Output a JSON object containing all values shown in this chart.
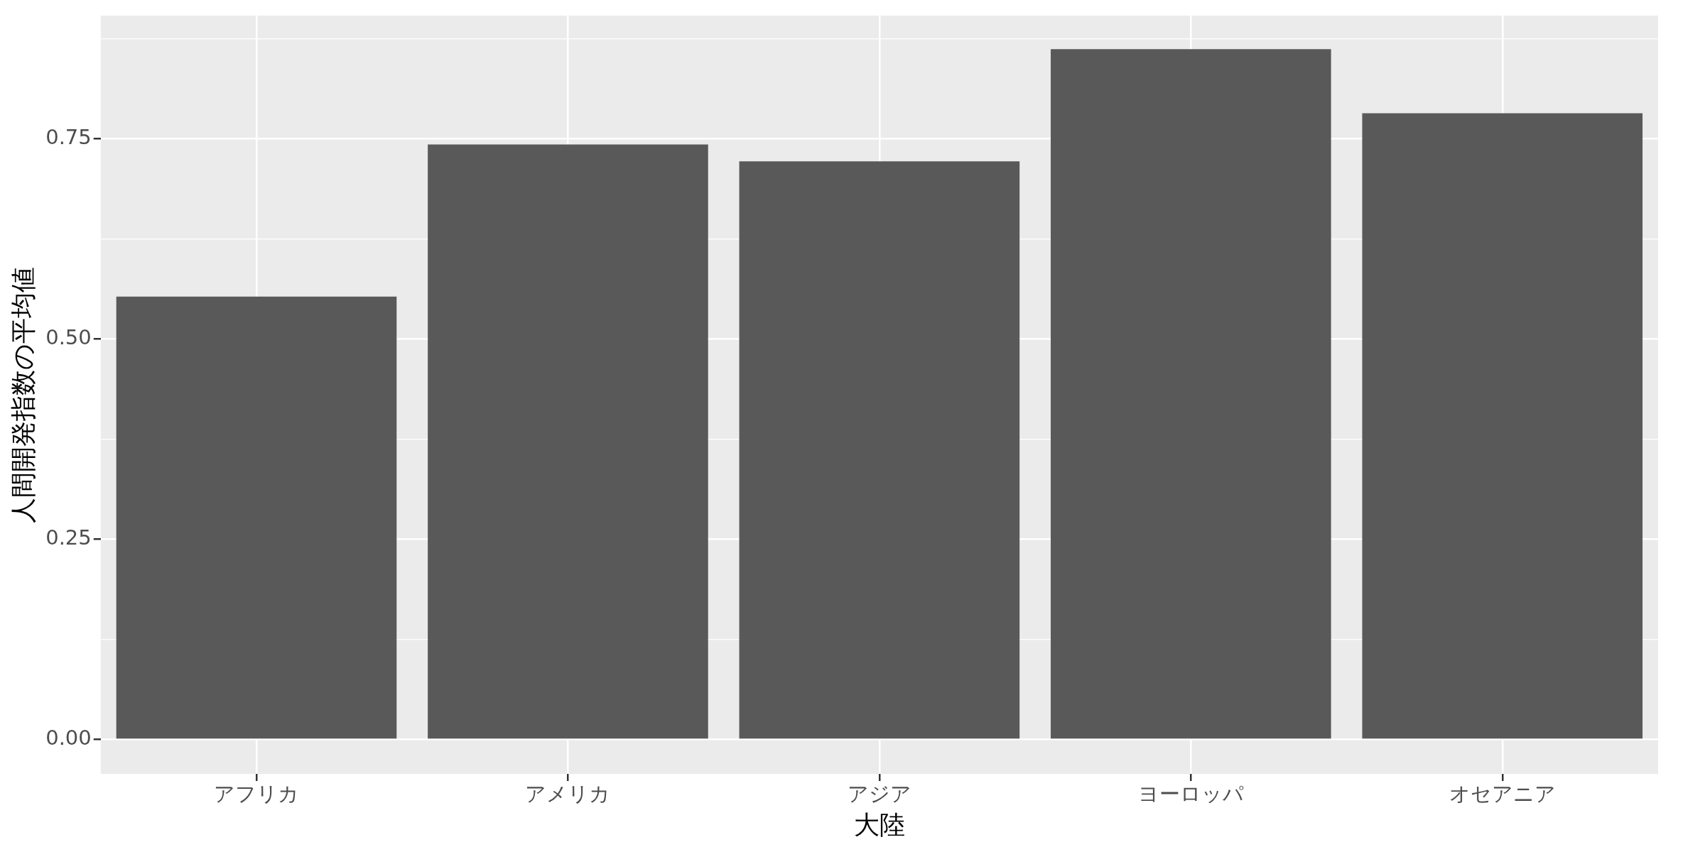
{
  "chart_data": {
    "type": "bar",
    "xlabel": "大陸",
    "ylabel": "人間開発指数の平均値",
    "categories": [
      "アフリカ",
      "アメリカ",
      "アジア",
      "ヨーロッパ",
      "オセアニア"
    ],
    "values": [
      0.553,
      0.743,
      0.722,
      0.862,
      0.782
    ],
    "color": "#595959",
    "ylim": [
      -0.043,
      0.904
    ],
    "yticks": [
      {
        "value": 0,
        "label": "0.00"
      },
      {
        "value": 0.25,
        "label": "0.25"
      },
      {
        "value": 0.5,
        "label": "0.50"
      },
      0.75
    ],
    "grid": true
  }
}
